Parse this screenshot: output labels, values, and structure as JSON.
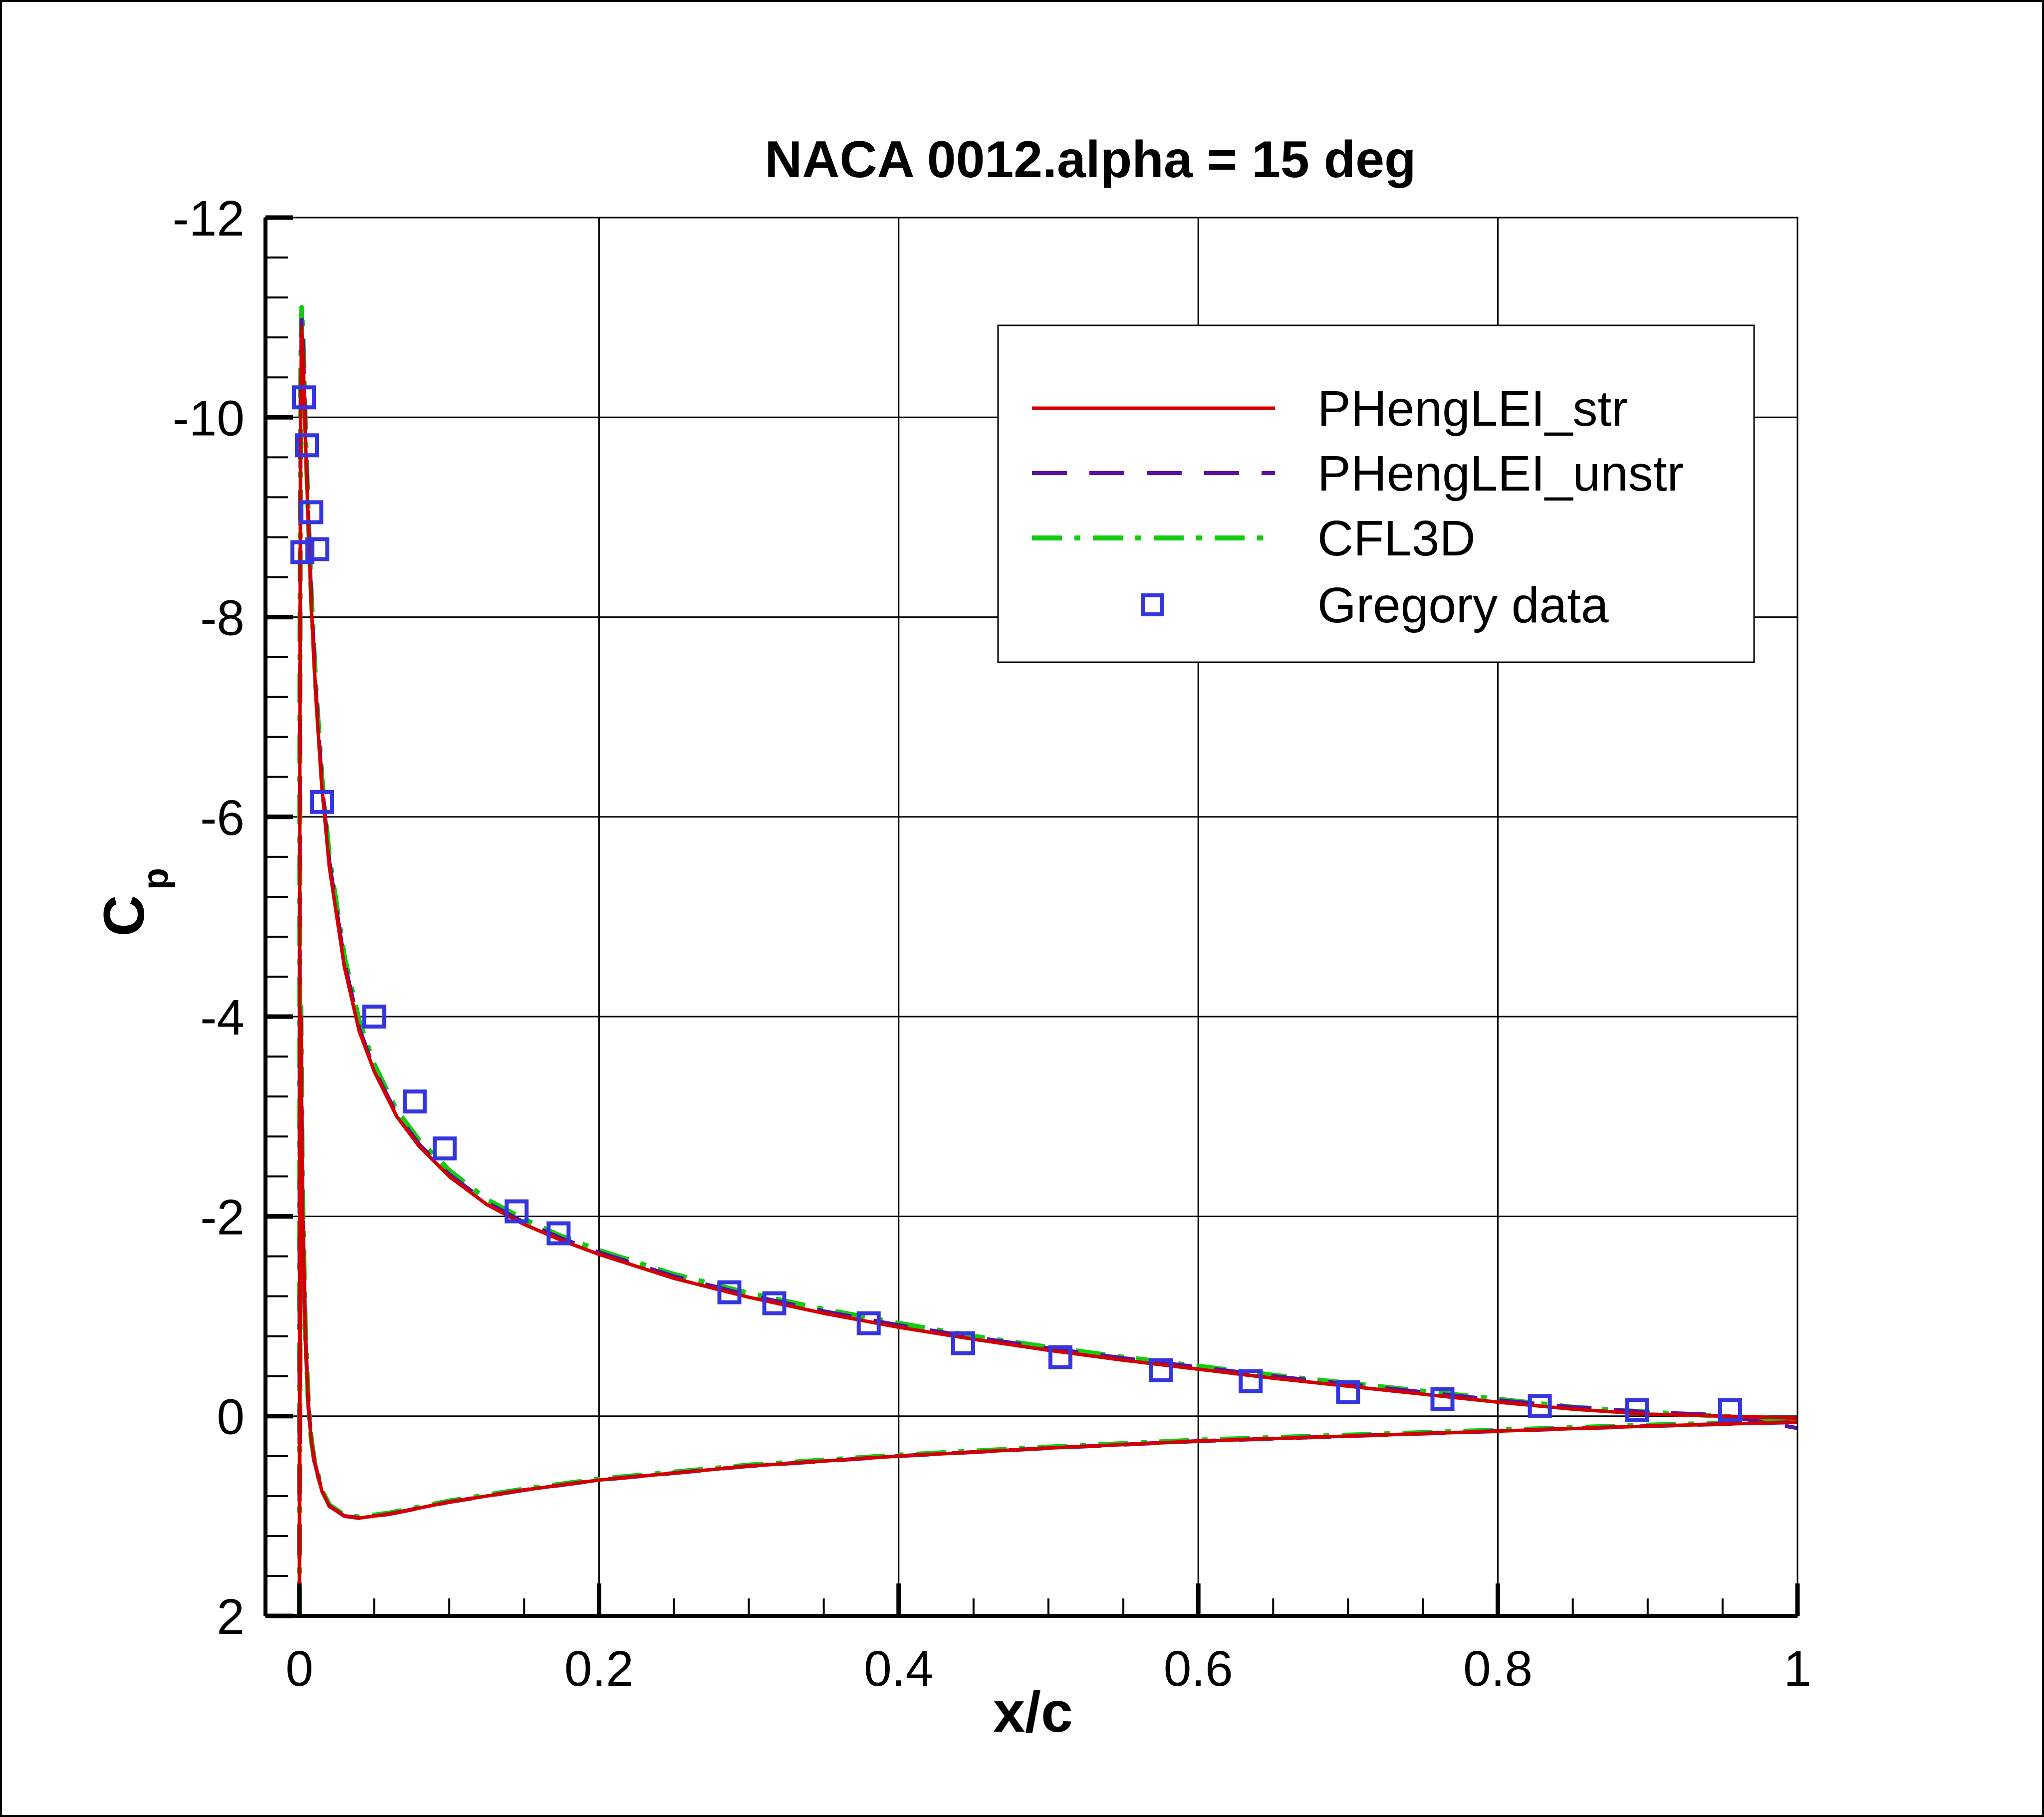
{
  "chart_data": {
    "type": "line",
    "title": "NACA 0012.alpha = 15 deg",
    "xlabel": "x/c",
    "ylabel": "C",
    "ylabel_subscript": "p",
    "xlim": [
      0,
      1
    ],
    "ylim": [
      2,
      -12
    ],
    "y_inverted": true,
    "grid": true,
    "x_ticks": [
      0,
      0.2,
      0.4,
      0.6,
      0.8,
      1
    ],
    "x_tick_labels": [
      "0",
      "0.2",
      "0.4",
      "0.6",
      "0.8",
      "1"
    ],
    "y_ticks": [
      -12,
      -10,
      -8,
      -6,
      -4,
      -2,
      0,
      2
    ],
    "y_tick_labels": [
      "-12",
      "-10",
      "-8",
      "-6",
      "-4",
      "-2",
      "0",
      "2"
    ],
    "legend_position": "top-right",
    "series": [
      {
        "name": "PHengLEI_str",
        "style": "solid",
        "color": "#d40000",
        "upper": {
          "x": [
            0,
            0.0003,
            0.0008,
            0.0015,
            0.0025,
            0.004,
            0.006,
            0.008,
            0.011,
            0.015,
            0.02,
            0.03,
            0.04,
            0.05,
            0.065,
            0.08,
            0.1,
            0.125,
            0.15,
            0.175,
            0.2,
            0.25,
            0.3,
            0.35,
            0.4,
            0.45,
            0.5,
            0.55,
            0.6,
            0.65,
            0.7,
            0.75,
            0.8,
            0.85,
            0.9,
            0.95,
            1.0
          ],
          "y": [
            2.0,
            -6.5,
            -10.0,
            -10.9,
            -10.6,
            -9.8,
            -8.9,
            -8.1,
            -7.2,
            -6.3,
            -5.5,
            -4.5,
            -3.85,
            -3.45,
            -3.0,
            -2.7,
            -2.4,
            -2.12,
            -1.92,
            -1.76,
            -1.62,
            -1.38,
            -1.19,
            -1.03,
            -0.89,
            -0.77,
            -0.66,
            -0.56,
            -0.47,
            -0.38,
            -0.3,
            -0.22,
            -0.14,
            -0.07,
            -0.02,
            0.0,
            0.02
          ]
        },
        "lower": {
          "x": [
            0,
            0.001,
            0.002,
            0.004,
            0.006,
            0.008,
            0.01,
            0.015,
            0.02,
            0.03,
            0.04,
            0.05,
            0.06,
            0.08,
            0.1,
            0.15,
            0.2,
            0.3,
            0.4,
            0.5,
            0.6,
            0.7,
            0.8,
            0.9,
            1.0
          ],
          "y": [
            2.0,
            -4.0,
            -2.2,
            -0.8,
            -0.1,
            0.25,
            0.45,
            0.75,
            0.9,
            1.0,
            1.02,
            1.0,
            0.98,
            0.92,
            0.86,
            0.74,
            0.64,
            0.5,
            0.4,
            0.32,
            0.25,
            0.2,
            0.15,
            0.1,
            0.06
          ]
        }
      },
      {
        "name": "PHengLEI_unstr",
        "style": "dashed",
        "color": "#5c0fa0",
        "upper": {
          "x": [
            0,
            0.0003,
            0.0008,
            0.0015,
            0.0025,
            0.004,
            0.006,
            0.008,
            0.011,
            0.015,
            0.02,
            0.03,
            0.04,
            0.05,
            0.065,
            0.08,
            0.1,
            0.125,
            0.15,
            0.175,
            0.2,
            0.25,
            0.3,
            0.35,
            0.4,
            0.45,
            0.5,
            0.55,
            0.6,
            0.65,
            0.7,
            0.75,
            0.8,
            0.85,
            0.9,
            0.95,
            1.0
          ],
          "y": [
            2.0,
            -6.6,
            -10.1,
            -11.0,
            -10.7,
            -9.85,
            -8.95,
            -8.15,
            -7.25,
            -6.35,
            -5.55,
            -4.55,
            -3.88,
            -3.47,
            -3.02,
            -2.72,
            -2.42,
            -2.14,
            -1.94,
            -1.78,
            -1.64,
            -1.4,
            -1.21,
            -1.05,
            -0.91,
            -0.79,
            -0.68,
            -0.58,
            -0.49,
            -0.4,
            -0.32,
            -0.24,
            -0.16,
            -0.09,
            -0.04,
            -0.01,
            0.12
          ]
        },
        "lower": {
          "x": [
            0,
            0.001,
            0.002,
            0.004,
            0.006,
            0.008,
            0.01,
            0.015,
            0.02,
            0.03,
            0.04,
            0.05,
            0.06,
            0.08,
            0.1,
            0.15,
            0.2,
            0.3,
            0.4,
            0.5,
            0.6,
            0.7,
            0.8,
            0.9,
            1.0
          ],
          "y": [
            2.0,
            -4.0,
            -2.2,
            -0.8,
            -0.1,
            0.25,
            0.45,
            0.75,
            0.9,
            1.0,
            1.02,
            1.0,
            0.98,
            0.92,
            0.86,
            0.74,
            0.64,
            0.5,
            0.4,
            0.32,
            0.25,
            0.2,
            0.15,
            0.1,
            0.06
          ]
        }
      },
      {
        "name": "CFL3D",
        "style": "dashdot",
        "color": "#11cc11",
        "upper": {
          "x": [
            0,
            0.0003,
            0.0008,
            0.0015,
            0.0025,
            0.004,
            0.006,
            0.008,
            0.011,
            0.015,
            0.02,
            0.03,
            0.04,
            0.05,
            0.065,
            0.08,
            0.1,
            0.125,
            0.15,
            0.175,
            0.2,
            0.25,
            0.3,
            0.35,
            0.4,
            0.45,
            0.5,
            0.55,
            0.6,
            0.65,
            0.7,
            0.75,
            0.8,
            0.85,
            0.9,
            0.95,
            1.0
          ],
          "y": [
            2.0,
            -6.8,
            -10.3,
            -11.1,
            -10.75,
            -9.9,
            -9.0,
            -8.2,
            -7.3,
            -6.4,
            -5.6,
            -4.6,
            -3.95,
            -3.52,
            -3.06,
            -2.76,
            -2.46,
            -2.17,
            -1.97,
            -1.8,
            -1.66,
            -1.42,
            -1.23,
            -1.07,
            -0.93,
            -0.8,
            -0.69,
            -0.59,
            -0.5,
            -0.41,
            -0.33,
            -0.25,
            -0.17,
            -0.09,
            -0.04,
            0.0,
            0.05
          ]
        },
        "lower": {
          "x": [
            0,
            0.001,
            0.002,
            0.004,
            0.006,
            0.008,
            0.01,
            0.015,
            0.02,
            0.03,
            0.04,
            0.05,
            0.06,
            0.08,
            0.1,
            0.15,
            0.2,
            0.3,
            0.4,
            0.5,
            0.6,
            0.7,
            0.8,
            0.9,
            1.0
          ],
          "y": [
            2.0,
            -4.1,
            -2.3,
            -0.85,
            -0.12,
            0.24,
            0.44,
            0.74,
            0.89,
            0.99,
            1.01,
            0.99,
            0.97,
            0.91,
            0.85,
            0.73,
            0.63,
            0.49,
            0.39,
            0.31,
            0.24,
            0.19,
            0.14,
            0.09,
            0.05
          ]
        }
      },
      {
        "name": "Gregory data",
        "style": "marker-square",
        "color": "#3535e0",
        "x": [
          0.002,
          0.003,
          0.005,
          0.008,
          0.012,
          0.015,
          0.05,
          0.077,
          0.097,
          0.145,
          0.173,
          0.287,
          0.317,
          0.38,
          0.443,
          0.508,
          0.575,
          0.635,
          0.7,
          0.763,
          0.828,
          0.893,
          0.955
        ],
        "y": [
          -8.65,
          -10.2,
          -9.72,
          -9.05,
          -8.68,
          -6.15,
          -4.0,
          -3.15,
          -2.68,
          -2.05,
          -1.83,
          -1.24,
          -1.13,
          -0.93,
          -0.73,
          -0.59,
          -0.46,
          -0.35,
          -0.24,
          -0.17,
          -0.1,
          -0.06,
          -0.06
        ]
      }
    ]
  }
}
